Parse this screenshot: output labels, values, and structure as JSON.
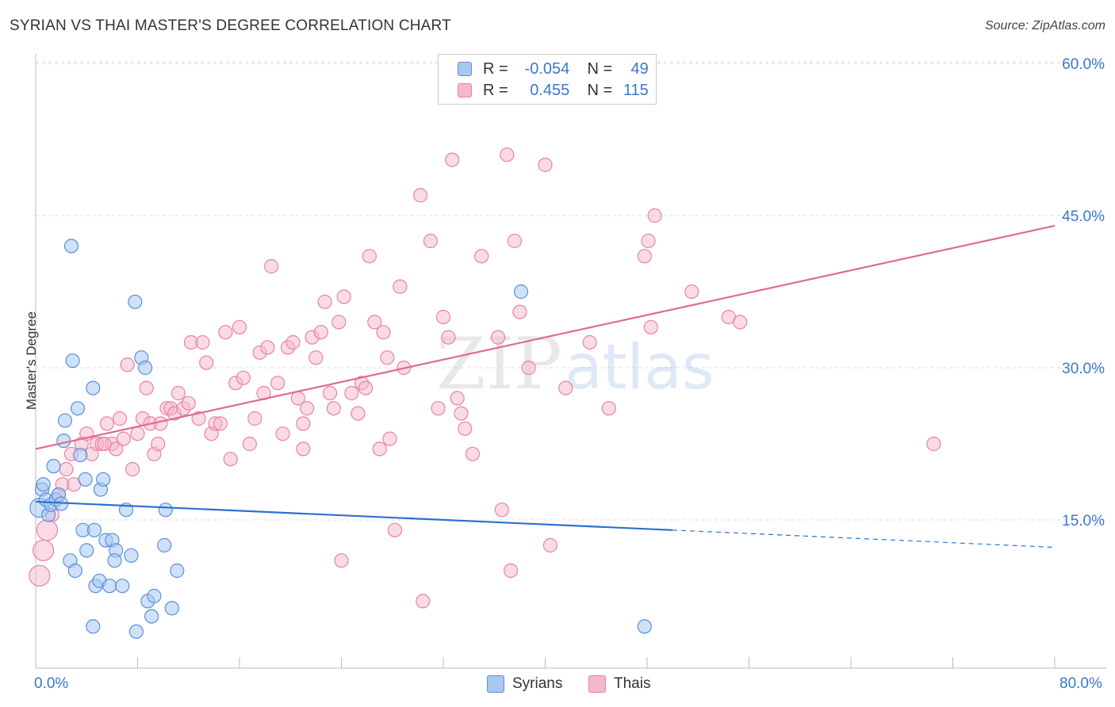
{
  "title": "SYRIAN VS THAI MASTER'S DEGREE CORRELATION CHART",
  "source": "Source: ZipAtlas.com",
  "watermark": {
    "zip": "ZIP",
    "atlas": "atlas"
  },
  "legend": {
    "rows": [
      {
        "r_label": "R =",
        "r_value": "-0.054",
        "n_label": "N =",
        "n_value": "49"
      },
      {
        "r_label": "R =",
        "r_value": "0.455",
        "n_label": "N =",
        "n_value": "115"
      }
    ]
  },
  "bottom_legend": {
    "syrians": "Syrians",
    "thais": "Thais"
  },
  "colors": {
    "syrian_fill": "#a8c8f0",
    "syrian_stroke": "#5b8fd8",
    "syrian_line": "#2d6fd0",
    "thai_fill": "#f5b8cb",
    "thai_stroke": "#e882a5",
    "thai_line": "#e06a94",
    "accent_text": "#3b78c8",
    "grid": "#dddddd"
  },
  "chart_data": {
    "type": "scatter",
    "title": "SYRIAN VS THAI MASTER'S DEGREE CORRELATION CHART",
    "xlabel": "",
    "ylabel": "Master's Degree",
    "xlim": [
      0,
      80
    ],
    "ylim": [
      0,
      60
    ],
    "x_tick_labels": [
      "0.0%",
      "80.0%"
    ],
    "y_ticks": [
      15,
      30,
      45,
      60
    ],
    "y_tick_labels": [
      "15.0%",
      "30.0%",
      "45.0%",
      "60.0%"
    ],
    "series": [
      {
        "name": "Syrians",
        "r": -0.054,
        "n": 49,
        "trend": {
          "x0": 0,
          "y0": 16.8,
          "x1": 50,
          "y1": 14.0,
          "dashed_to_x": 80,
          "dashed_to_y": 12.3
        },
        "points": [
          [
            0.3,
            16.2
          ],
          [
            0.5,
            18.0
          ],
          [
            0.6,
            18.5
          ],
          [
            0.8,
            17.0
          ],
          [
            1.0,
            15.5
          ],
          [
            1.2,
            16.5
          ],
          [
            1.4,
            20.3
          ],
          [
            1.6,
            17.0
          ],
          [
            1.8,
            17.5
          ],
          [
            2.0,
            16.6
          ],
          [
            2.3,
            24.8
          ],
          [
            2.2,
            22.8
          ],
          [
            2.7,
            11.0
          ],
          [
            2.9,
            30.7
          ],
          [
            3.1,
            10.0
          ],
          [
            3.3,
            26.0
          ],
          [
            3.5,
            21.4
          ],
          [
            3.7,
            14.0
          ],
          [
            3.9,
            19.0
          ],
          [
            4.0,
            12.0
          ],
          [
            4.5,
            28.0
          ],
          [
            4.6,
            14.0
          ],
          [
            4.7,
            8.5
          ],
          [
            5.0,
            9.0
          ],
          [
            5.1,
            18.0
          ],
          [
            5.3,
            19.0
          ],
          [
            5.5,
            13.0
          ],
          [
            5.8,
            8.5
          ],
          [
            6.0,
            13.0
          ],
          [
            6.3,
            12.0
          ],
          [
            6.8,
            8.5
          ],
          [
            7.1,
            16.0
          ],
          [
            7.5,
            11.5
          ],
          [
            7.8,
            36.5
          ],
          [
            7.9,
            4.0
          ],
          [
            8.3,
            31.0
          ],
          [
            8.6,
            30.0
          ],
          [
            8.8,
            7.0
          ],
          [
            9.1,
            5.5
          ],
          [
            9.3,
            7.5
          ],
          [
            10.1,
            12.5
          ],
          [
            10.2,
            16.0
          ],
          [
            10.7,
            6.3
          ],
          [
            11.1,
            10.0
          ],
          [
            2.8,
            42.0
          ],
          [
            4.5,
            4.5
          ],
          [
            38.1,
            37.5
          ],
          [
            47.8,
            4.5
          ],
          [
            6.2,
            11.0
          ]
        ]
      },
      {
        "name": "Thais",
        "r": 0.455,
        "n": 115,
        "trend": {
          "x0": 0,
          "y0": 22.0,
          "x1": 80,
          "y1": 44.0
        },
        "points": [
          [
            0.3,
            9.5
          ],
          [
            0.6,
            12.0
          ],
          [
            0.9,
            14.0
          ],
          [
            1.3,
            15.5
          ],
          [
            1.8,
            17.5
          ],
          [
            2.1,
            18.5
          ],
          [
            2.4,
            20.0
          ],
          [
            2.8,
            21.5
          ],
          [
            3.0,
            18.5
          ],
          [
            3.6,
            22.5
          ],
          [
            4.0,
            23.5
          ],
          [
            4.4,
            21.5
          ],
          [
            4.8,
            22.5
          ],
          [
            5.2,
            22.5
          ],
          [
            5.6,
            24.5
          ],
          [
            6.0,
            22.5
          ],
          [
            6.3,
            22.0
          ],
          [
            6.6,
            25.0
          ],
          [
            6.9,
            23.0
          ],
          [
            7.2,
            30.3
          ],
          [
            7.6,
            20.0
          ],
          [
            8.0,
            23.5
          ],
          [
            8.4,
            25.0
          ],
          [
            8.7,
            28.0
          ],
          [
            9.0,
            24.5
          ],
          [
            9.3,
            21.5
          ],
          [
            9.6,
            22.5
          ],
          [
            9.8,
            24.5
          ],
          [
            10.3,
            26.0
          ],
          [
            10.6,
            26.0
          ],
          [
            10.9,
            25.5
          ],
          [
            11.2,
            27.5
          ],
          [
            11.6,
            26.0
          ],
          [
            12.0,
            26.5
          ],
          [
            12.2,
            32.5
          ],
          [
            12.8,
            25.0
          ],
          [
            13.1,
            32.5
          ],
          [
            13.4,
            30.5
          ],
          [
            13.8,
            23.5
          ],
          [
            14.1,
            24.5
          ],
          [
            14.5,
            24.5
          ],
          [
            14.9,
            33.5
          ],
          [
            15.3,
            21.0
          ],
          [
            15.7,
            28.5
          ],
          [
            16.0,
            34.0
          ],
          [
            16.3,
            29.0
          ],
          [
            16.8,
            22.5
          ],
          [
            17.2,
            25.0
          ],
          [
            17.6,
            31.5
          ],
          [
            17.9,
            27.5
          ],
          [
            18.2,
            32.0
          ],
          [
            18.5,
            40.0
          ],
          [
            19.0,
            28.5
          ],
          [
            19.4,
            23.5
          ],
          [
            19.8,
            32.0
          ],
          [
            20.2,
            32.5
          ],
          [
            20.6,
            27.0
          ],
          [
            21.0,
            24.5
          ],
          [
            21.3,
            26.0
          ],
          [
            21.7,
            33.0
          ],
          [
            22.0,
            31.0
          ],
          [
            22.4,
            33.5
          ],
          [
            22.7,
            36.5
          ],
          [
            23.1,
            27.5
          ],
          [
            23.4,
            26.0
          ],
          [
            23.8,
            34.5
          ],
          [
            24.2,
            37.0
          ],
          [
            24.8,
            27.5
          ],
          [
            25.3,
            25.5
          ],
          [
            25.6,
            28.5
          ],
          [
            25.9,
            28.0
          ],
          [
            26.2,
            41.0
          ],
          [
            26.6,
            34.5
          ],
          [
            27.0,
            22.0
          ],
          [
            27.3,
            33.5
          ],
          [
            27.6,
            31.0
          ],
          [
            27.8,
            23.0
          ],
          [
            28.2,
            14.0
          ],
          [
            28.6,
            38.0
          ],
          [
            28.9,
            30.0
          ],
          [
            30.2,
            47.0
          ],
          [
            31.0,
            42.5
          ],
          [
            31.6,
            26.0
          ],
          [
            32.0,
            35.0
          ],
          [
            32.4,
            33.0
          ],
          [
            32.7,
            50.5
          ],
          [
            33.1,
            27.0
          ],
          [
            33.4,
            25.5
          ],
          [
            33.7,
            24.0
          ],
          [
            34.3,
            21.5
          ],
          [
            35.0,
            41.0
          ],
          [
            36.3,
            33.0
          ],
          [
            36.6,
            16.0
          ],
          [
            37.0,
            51.0
          ],
          [
            37.3,
            10.0
          ],
          [
            37.6,
            42.5
          ],
          [
            38.0,
            35.5
          ],
          [
            38.7,
            30.0
          ],
          [
            40.0,
            50.0
          ],
          [
            40.4,
            12.5
          ],
          [
            41.6,
            28.0
          ],
          [
            43.5,
            32.5
          ],
          [
            45.0,
            26.0
          ],
          [
            47.8,
            41.0
          ],
          [
            48.1,
            42.5
          ],
          [
            48.3,
            34.0
          ],
          [
            48.6,
            45.0
          ],
          [
            51.5,
            37.5
          ],
          [
            54.4,
            35.0
          ],
          [
            55.3,
            34.5
          ],
          [
            70.5,
            22.5
          ],
          [
            30.4,
            7.0
          ],
          [
            24.0,
            11.0
          ],
          [
            5.4,
            22.5
          ],
          [
            21.0,
            22.0
          ]
        ]
      }
    ]
  }
}
